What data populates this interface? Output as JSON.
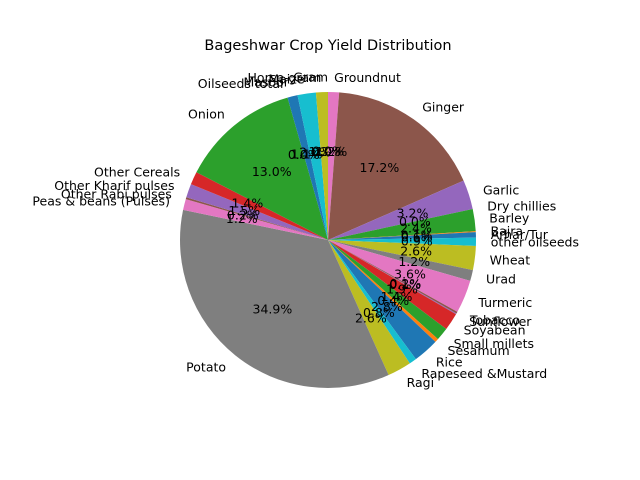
{
  "chart_data": {
    "type": "pie",
    "title": "Bageshwar Crop Yield Distribution",
    "start_angle_deg": 90,
    "direction": "clockwise",
    "legend": "none",
    "slices": [
      {
        "label": "Groundnut",
        "value": 1.2,
        "pct": "1.2%",
        "color": "#e377c2"
      },
      {
        "label": "Ginger",
        "value": 17.2,
        "pct": "17.2%",
        "color": "#8c564b"
      },
      {
        "label": "Garlic",
        "value": 3.2,
        "pct": "3.2%",
        "color": "#9467bd"
      },
      {
        "label": "Dry chillies",
        "value": 0.0,
        "pct": "0.0%",
        "color": "#d62728"
      },
      {
        "label": "Barley",
        "value": 2.4,
        "pct": "2.4%",
        "color": "#2ca02c"
      },
      {
        "label": "Bajra",
        "value": 0.1,
        "pct": "0.1%",
        "color": "#ff7f0e"
      },
      {
        "label": "Arhar/Tur",
        "value": 0.6,
        "pct": "0.6%",
        "color": "#1f77b4"
      },
      {
        "label": "other oilseeds",
        "value": 0.9,
        "pct": "0.9%",
        "color": "#17becf"
      },
      {
        "label": "Wheat",
        "value": 2.6,
        "pct": "2.6%",
        "color": "#bcbd22"
      },
      {
        "label": "Urad",
        "value": 1.2,
        "pct": "1.2%",
        "color": "#7f7f7f"
      },
      {
        "label": "Turmeric",
        "value": 3.6,
        "pct": "3.6%",
        "color": "#e377c2"
      },
      {
        "label": "Tobacco",
        "value": 0.2,
        "pct": "0.2%",
        "color": "#8c564b"
      },
      {
        "label": "Sunflower",
        "value": 0.1,
        "pct": "0.1%",
        "color": "#9467bd"
      },
      {
        "label": "Soyabean",
        "value": 1.9,
        "pct": "1.9%",
        "color": "#d62728"
      },
      {
        "label": "Small millets",
        "value": 1.4,
        "pct": "1.4%",
        "color": "#2ca02c"
      },
      {
        "label": "Sesamum",
        "value": 0.4,
        "pct": "0.4%",
        "color": "#ff7f0e"
      },
      {
        "label": "Rice",
        "value": 2.8,
        "pct": "2.8%",
        "color": "#1f77b4"
      },
      {
        "label": "Rapeseed &Mustard",
        "value": 0.8,
        "pct": "0.8%",
        "color": "#17becf"
      },
      {
        "label": "Ragi",
        "value": 2.6,
        "pct": "2.6%",
        "color": "#bcbd22"
      },
      {
        "label": "Potato",
        "value": 34.9,
        "pct": "34.9%",
        "color": "#7f7f7f"
      },
      {
        "label": "Peas & beans (Pulses)",
        "value": 1.2,
        "pct": "1.2%",
        "color": "#e377c2"
      },
      {
        "label": "Other Rabi pulses",
        "value": 0.2,
        "pct": "0.2%",
        "color": "#8c564b"
      },
      {
        "label": "Other Kharif pulses",
        "value": 1.5,
        "pct": "1.5%",
        "color": "#9467bd"
      },
      {
        "label": "Other Cereals",
        "value": 1.4,
        "pct": "1.4%",
        "color": "#d62728"
      },
      {
        "label": "Onion",
        "value": 13.0,
        "pct": "13.0%",
        "color": "#2ca02c"
      },
      {
        "label": "Oilseeds total",
        "value": 0.0,
        "pct": "0.0%",
        "color": "#ff7f0e"
      },
      {
        "label": "Masoor",
        "value": 1.1,
        "pct": "1.1%",
        "color": "#1f77b4"
      },
      {
        "label": "Maize",
        "value": 2.0,
        "pct": "2.0%",
        "color": "#17becf"
      },
      {
        "label": "Horse-gram",
        "value": 1.3,
        "pct": "1.3%",
        "color": "#bcbd22"
      },
      {
        "label": "Gram",
        "value": 0.0,
        "pct": "0.0%",
        "color": "#7f7f7f"
      }
    ]
  }
}
